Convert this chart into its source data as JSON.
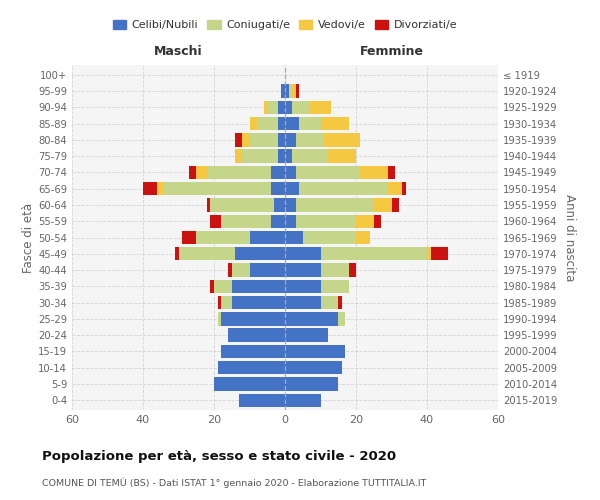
{
  "age_groups": [
    "0-4",
    "5-9",
    "10-14",
    "15-19",
    "20-24",
    "25-29",
    "30-34",
    "35-39",
    "40-44",
    "45-49",
    "50-54",
    "55-59",
    "60-64",
    "65-69",
    "70-74",
    "75-79",
    "80-84",
    "85-89",
    "90-94",
    "95-99",
    "100+"
  ],
  "birth_years": [
    "2015-2019",
    "2010-2014",
    "2005-2009",
    "2000-2004",
    "1995-1999",
    "1990-1994",
    "1985-1989",
    "1980-1984",
    "1975-1979",
    "1970-1974",
    "1965-1969",
    "1960-1964",
    "1955-1959",
    "1950-1954",
    "1945-1949",
    "1940-1944",
    "1935-1939",
    "1930-1934",
    "1925-1929",
    "1920-1924",
    "≤ 1919"
  ],
  "male": {
    "celibi": [
      13,
      20,
      19,
      18,
      16,
      18,
      15,
      15,
      10,
      14,
      10,
      4,
      3,
      4,
      4,
      2,
      2,
      2,
      2,
      1,
      0
    ],
    "coniugati": [
      0,
      0,
      0,
      0,
      0,
      1,
      3,
      5,
      5,
      16,
      15,
      14,
      18,
      30,
      18,
      10,
      8,
      6,
      3,
      0,
      0
    ],
    "vedovi": [
      0,
      0,
      0,
      0,
      0,
      0,
      0,
      0,
      0,
      0,
      0,
      0,
      0,
      2,
      3,
      2,
      2,
      2,
      1,
      0,
      0
    ],
    "divorziati": [
      0,
      0,
      0,
      0,
      0,
      0,
      1,
      1,
      1,
      1,
      4,
      3,
      1,
      4,
      2,
      0,
      2,
      0,
      0,
      0,
      0
    ]
  },
  "female": {
    "nubili": [
      10,
      15,
      16,
      17,
      12,
      15,
      10,
      10,
      10,
      10,
      5,
      3,
      3,
      4,
      3,
      2,
      3,
      4,
      2,
      1,
      0
    ],
    "coniugate": [
      0,
      0,
      0,
      0,
      0,
      2,
      5,
      8,
      8,
      30,
      15,
      17,
      22,
      25,
      18,
      10,
      8,
      6,
      5,
      1,
      0
    ],
    "vedove": [
      0,
      0,
      0,
      0,
      0,
      0,
      0,
      0,
      0,
      1,
      4,
      5,
      5,
      4,
      8,
      8,
      10,
      8,
      6,
      1,
      0
    ],
    "divorziate": [
      0,
      0,
      0,
      0,
      0,
      0,
      1,
      0,
      2,
      5,
      0,
      2,
      2,
      1,
      2,
      0,
      0,
      0,
      0,
      1,
      0
    ]
  },
  "colors": {
    "celibi": "#4472C4",
    "coniugati": "#C5D68A",
    "vedovi": "#F5C842",
    "divorziati": "#CC1111"
  },
  "xlim": 60,
  "title": "Popolazione per età, sesso e stato civile - 2020",
  "subtitle": "COMUNE DI TEMÙ (BS) - Dati ISTAT 1° gennaio 2020 - Elaborazione TUTTITALIA.IT",
  "xlabel_left": "Maschi",
  "xlabel_right": "Femmine",
  "ylabel_left": "Fasce di età",
  "ylabel_right": "Anni di nascita",
  "legend_labels": [
    "Celibi/Nubili",
    "Coniugati/e",
    "Vedovi/e",
    "Divorziati/e"
  ],
  "background_color": "#f5f5f5",
  "bar_height": 0.82
}
